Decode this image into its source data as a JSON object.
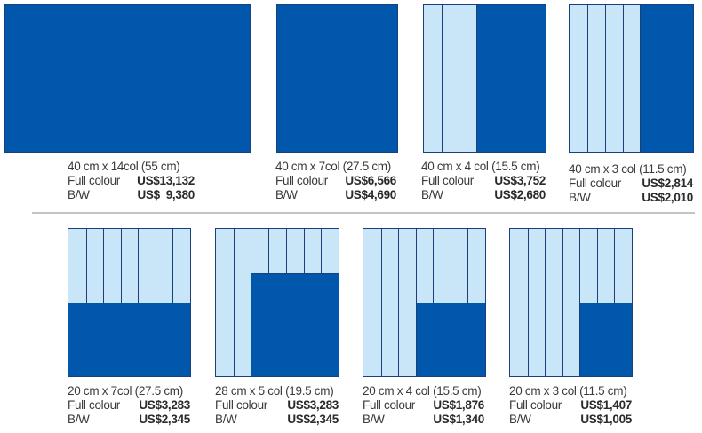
{
  "colors": {
    "fill": "#0057ab",
    "light": "#c8e6f8",
    "line": "#1a3f7a",
    "divider": "#c4c4c4"
  },
  "ads": [
    {
      "size": "40 cm x 14col   (55 cm)",
      "full_label": "Full colour",
      "full_price": "US$13,132",
      "bw_label": "B/W",
      "bw_price": "US$  9,380",
      "columns_total": 14,
      "columns_used": 14,
      "height_fraction": 1
    },
    {
      "size": "40 cm x 7col (27.5 cm)",
      "full_label": "Full colour",
      "full_price": "US$6,566",
      "bw_label": "B/W",
      "bw_price": "US$4,690",
      "columns_total": 7,
      "columns_used": 7,
      "height_fraction": 1
    },
    {
      "size": "40 cm x 4 col (15.5 cm)",
      "full_label": "Full colour",
      "full_price": "US$3,752",
      "bw_label": "B/W",
      "bw_price": "US$2,680",
      "columns_total": 7,
      "columns_used": 4,
      "height_fraction": 1
    },
    {
      "size": "40 cm x 3 col (11.5 cm)",
      "full_label": "Full colour",
      "full_price": "US$2,814",
      "bw_label": "B/W",
      "bw_price": "US$2,010",
      "columns_total": 7,
      "columns_used": 3,
      "height_fraction": 1
    },
    {
      "size": "20 cm x 7col (27.5 cm)",
      "full_label": "Full colour",
      "full_price": "US$3,283",
      "bw_label": "B/W",
      "bw_price": "US$2,345",
      "columns_total": 7,
      "columns_used": 7,
      "height_fraction": 0.5
    },
    {
      "size": "28 cm x 5 col (19.5 cm)",
      "full_label": "Full colour",
      "full_price": "US$3,283",
      "bw_label": "B/W",
      "bw_price": "US$2,345",
      "columns_total": 7,
      "columns_used": 5,
      "height_fraction": 0.7
    },
    {
      "size": "20 cm x 4 col (15.5 cm)",
      "full_label": "Full colour",
      "full_price": "US$1,876",
      "bw_label": "B/W",
      "bw_price": "US$1,340",
      "columns_total": 7,
      "columns_used": 4,
      "height_fraction": 0.5
    },
    {
      "size": "20 cm x 3 col (11.5 cm)",
      "full_label": "Full colour",
      "full_price": "US$1,407",
      "bw_label": "B/W",
      "bw_price": "US$1,005",
      "columns_total": 7,
      "columns_used": 3,
      "height_fraction": 0.5
    }
  ]
}
